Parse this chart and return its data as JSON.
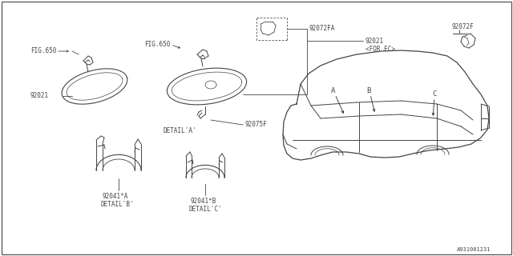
{
  "bg_color": "#ffffff",
  "line_color": "#444444",
  "diagram_id": "A931001231",
  "parts": {
    "mirror_left_label": "92021",
    "mirror_left_fig": "FIG.650",
    "mirror_right_fig": "FIG.650",
    "mirror_right_detail": "DETAIL'A'",
    "part_92072FA": "92072FA",
    "part_92072F": "92072F",
    "part_92021_ec": "92021\n<FOR EC>",
    "part_92075F": "92075F",
    "part_92041A": "92041*A",
    "detail_B": "DETAIL'B'",
    "part_92041B": "92041*B",
    "detail_C": "DETAIL'C'",
    "label_A": "A",
    "label_B": "B",
    "label_C": "C"
  },
  "font_size": 5.5
}
